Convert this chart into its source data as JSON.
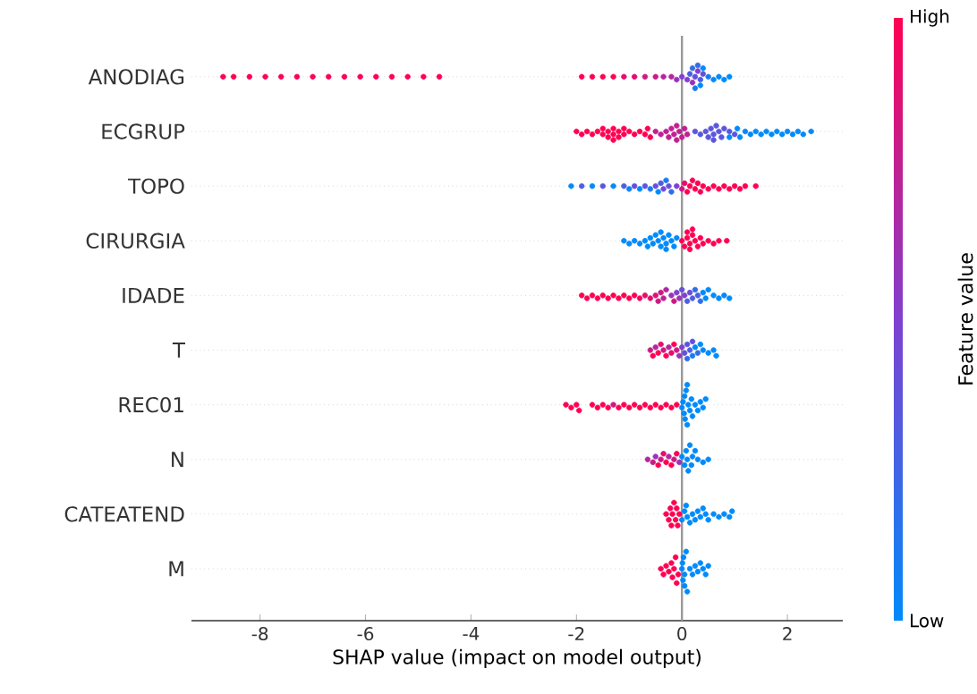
{
  "chart_data": {
    "type": "scatter",
    "orientation": "horizontal",
    "xlabel": "SHAP value (impact on model output)",
    "clabel": "Feature value",
    "categories": [
      "ANODIAG",
      "ECGRUP",
      "TOPO",
      "CIRURGIA",
      "IDADE",
      "T",
      "REC01",
      "N",
      "CATEATEND",
      "M"
    ],
    "xlim": [
      -9.3,
      3.05
    ],
    "xticks": [
      -8,
      -6,
      -4,
      -2,
      0,
      2
    ],
    "clim": [
      0,
      1
    ],
    "cticks": [
      {
        "value": 0,
        "label": "Low"
      },
      {
        "value": 1,
        "label": "High"
      }
    ],
    "grid": "y",
    "marker": "circle",
    "ref_lines": [
      {
        "axis": "x",
        "value": 0,
        "color": "#999999"
      }
    ],
    "series": [
      {
        "x": [
          "ANODIAG",
          "ANODIAG",
          "ANODIAG",
          "ANODIAG",
          "ANODIAG",
          "ANODIAG",
          "ANODIAG",
          "ANODIAG",
          "ANODIAG",
          "ANODIAG",
          "ANODIAG",
          "ANODIAG",
          "ANODIAG",
          "ANODIAG",
          "ANODIAG",
          "ANODIAG",
          "ANODIAG",
          "ANODIAG",
          "ANODIAG",
          "ANODIAG",
          "ANODIAG",
          "ANODIAG",
          "ANODIAG",
          "ANODIAG",
          "ANODIAG",
          "ANODIAG",
          "ANODIAG",
          "ANODIAG",
          "ANODIAG",
          "ANODIAG",
          "ANODIAG",
          "ANODIAG",
          "ANODIAG",
          "ANODIAG",
          "ANODIAG",
          "ANODIAG",
          "ANODIAG",
          "ANODIAG",
          "ANODIAG",
          "ANODIAG",
          "ANODIAG",
          "ANODIAG",
          "ANODIAG",
          "ANODIAG"
        ],
        "values": [
          -8.7,
          -8.5,
          -8.2,
          -7.9,
          -7.6,
          -7.3,
          -7.0,
          -6.7,
          -6.4,
          -6.1,
          -5.8,
          -5.5,
          -5.2,
          -4.9,
          -4.6,
          -1.9,
          -1.7,
          -1.5,
          -1.3,
          -1.1,
          -0.9,
          -0.7,
          -0.5,
          -0.35,
          -0.2,
          -0.1,
          0,
          0.1,
          0.15,
          0.2,
          0.2,
          0.25,
          0.25,
          0.3,
          0.3,
          0.35,
          0.35,
          0.4,
          0.4,
          0.5,
          0.6,
          0.7,
          0.8,
          0.9
        ],
        "cvalues": [
          1,
          1,
          1,
          1,
          1,
          1,
          1,
          1,
          1,
          1,
          1,
          1,
          1,
          1,
          1,
          1,
          1,
          1,
          1,
          0.9,
          0.9,
          0.8,
          0.8,
          0.7,
          0.7,
          0.6,
          0.5,
          0.5,
          0.3,
          0.6,
          0.2,
          0.4,
          0.1,
          0.5,
          0.2,
          0.3,
          0,
          0.4,
          0,
          0.1,
          0,
          0,
          0,
          0
        ],
        "colors": [
          "#ff0052",
          "#ff0052",
          "#ff0052",
          "#ff0052",
          "#ff0052",
          "#ff0052",
          "#ff0052",
          "#ff0052",
          "#ff0052",
          "#ff0052",
          "#ff0052",
          "#ff0052",
          "#ff0052",
          "#ff0052",
          "#ff0052",
          "#ff0052",
          "#ff0052",
          "#ff0052",
          "#ff0052",
          "#e60d6b",
          "#e60d6b",
          "#cc1a84",
          "#cc1a84",
          "#b3269e",
          "#b3269e",
          "#9933b7",
          "#8040d0",
          "#8040d0",
          "#4d5ee1",
          "#9933b7",
          "#336ce9",
          "#664fd8",
          "#1a7bf2",
          "#8040d0",
          "#336ce9",
          "#4d5ee1",
          "#008afa",
          "#664fd8",
          "#008afa",
          "#1a7bf2",
          "#008afa",
          "#008afa",
          "#008afa",
          "#008afa"
        ]
      },
      {
        "x": [
          "ECGRUP",
          "ECGRUP",
          "ECGRUP",
          "ECGRUP",
          "ECGRUP",
          "ECGRUP",
          "ECGRUP",
          "ECGRUP",
          "ECGRUP",
          "ECGRUP",
          "ECGRUP",
          "ECGRUP",
          "ECGRUP",
          "ECGRUP",
          "ECGRUP",
          "ECGRUP",
          "ECGRUP",
          "ECGRUP",
          "ECGRUP",
          "ECGRUP",
          "ECGRUP",
          "ECGRUP",
          "ECGRUP",
          "ECGRUP",
          "ECGRUP",
          "ECGRUP",
          "ECGRUP",
          "ECGRUP",
          "ECGRUP",
          "ECGRUP",
          "ECGRUP",
          "ECGRUP",
          "ECGRUP",
          "ECGRUP",
          "ECGRUP",
          "ECGRUP",
          "ECGRUP",
          "ECGRUP",
          "ECGRUP",
          "ECGRUP",
          "ECGRUP",
          "ECGRUP",
          "ECGRUP",
          "ECGRUP",
          "ECGRUP",
          "ECGRUP",
          "ECGRUP",
          "ECGRUP",
          "ECGRUP",
          "ECGRUP",
          "ECGRUP",
          "ECGRUP",
          "ECGRUP",
          "ECGRUP",
          "ECGRUP",
          "ECGRUP",
          "ECGRUP",
          "ECGRUP",
          "ECGRUP",
          "ECGRUP",
          "ECGRUP",
          "ECGRUP",
          "ECGRUP"
        ],
        "values": [
          -2.0,
          -1.9,
          -1.8,
          -1.7,
          -1.6,
          -1.5,
          -1.5,
          -1.4,
          -1.4,
          -1.3,
          -1.3,
          -1.3,
          -1.2,
          -1.2,
          -1.1,
          -1.1,
          -1.0,
          -0.9,
          -0.8,
          -0.7,
          -0.65,
          -0.6,
          -0.5,
          -0.4,
          -0.3,
          -0.25,
          -0.2,
          -0.15,
          -0.1,
          -0.1,
          -0.05,
          0,
          0.05,
          0.1,
          0.25,
          0.35,
          0.45,
          0.5,
          0.55,
          0.6,
          0.6,
          0.65,
          0.7,
          0.75,
          0.8,
          0.9,
          1.0,
          0.9,
          1.05,
          1.1,
          1.2,
          1.3,
          1.4,
          1.5,
          1.6,
          1.7,
          1.8,
          1.9,
          2.0,
          2.1,
          2.2,
          2.3,
          2.45
        ],
        "cvalues": [
          1,
          1,
          1,
          1,
          1,
          1,
          1,
          1,
          1,
          1,
          1,
          1,
          1,
          1,
          1,
          1,
          1,
          1,
          1,
          1,
          1,
          1,
          0.75,
          0.75,
          0.75,
          0.75,
          0.75,
          0.75,
          0.75,
          0.75,
          0.75,
          0.75,
          0.75,
          0.75,
          0.35,
          0.35,
          0.35,
          0.35,
          0.35,
          0.35,
          0.35,
          0.35,
          0.35,
          0.35,
          0.35,
          0.35,
          0.35,
          0,
          0,
          0,
          0,
          0,
          0,
          0,
          0,
          0,
          0,
          0,
          0,
          0,
          0,
          0,
          0
        ],
        "colors": [
          "#ff0052",
          "#ff0052",
          "#ff0052",
          "#ff0052",
          "#ff0052",
          "#ff0052",
          "#ff0052",
          "#ff0052",
          "#ff0052",
          "#ff0052",
          "#ff0052",
          "#ff0052",
          "#ff0052",
          "#ff0052",
          "#ff0052",
          "#ff0052",
          "#ff0052",
          "#ff0052",
          "#ff0052",
          "#ff0052",
          "#ff0052",
          "#ff0052",
          "#c02091",
          "#c02091",
          "#c02091",
          "#c02091",
          "#c02091",
          "#c02091",
          "#c02091",
          "#c02091",
          "#c02091",
          "#c02091",
          "#c02091",
          "#c02091",
          "#5a56dd",
          "#5a56dd",
          "#5a56dd",
          "#5a56dd",
          "#5a56dd",
          "#5a56dd",
          "#5a56dd",
          "#5a56dd",
          "#5a56dd",
          "#5a56dd",
          "#5a56dd",
          "#5a56dd",
          "#5a56dd",
          "#008afa",
          "#008afa",
          "#008afa",
          "#008afa",
          "#008afa",
          "#008afa",
          "#008afa",
          "#008afa",
          "#008afa",
          "#008afa",
          "#008afa",
          "#008afa",
          "#008afa",
          "#008afa",
          "#008afa",
          "#008afa"
        ]
      },
      {
        "x": [
          "TOPO",
          "TOPO",
          "TOPO",
          "TOPO",
          "TOPO",
          "TOPO",
          "TOPO",
          "TOPO",
          "TOPO",
          "TOPO",
          "TOPO",
          "TOPO",
          "TOPO",
          "TOPO",
          "TOPO",
          "TOPO",
          "TOPO",
          "TOPO",
          "TOPO",
          "TOPO",
          "TOPO",
          "TOPO",
          "TOPO",
          "TOPO",
          "TOPO",
          "TOPO",
          "TOPO",
          "TOPO",
          "TOPO",
          "TOPO",
          "TOPO",
          "TOPO",
          "TOPO",
          "TOPO",
          "TOPO",
          "TOPO",
          "TOPO"
        ],
        "values": [
          -2.1,
          -1.9,
          -1.7,
          -1.5,
          -1.3,
          -1.1,
          -1.0,
          -0.9,
          -0.8,
          -0.7,
          -0.6,
          -0.5,
          -0.45,
          -0.4,
          -0.35,
          -0.3,
          -0.25,
          -0.2,
          -0.1,
          0,
          0.05,
          0.1,
          0.15,
          0.2,
          0.25,
          0.3,
          0.35,
          0.4,
          0.5,
          0.6,
          0.7,
          0.8,
          0.9,
          1.0,
          1.1,
          1.2,
          1.4
        ],
        "cvalues": [
          0,
          0.3,
          0,
          0.35,
          0,
          0.3,
          0.05,
          0.4,
          0,
          0.35,
          0.1,
          0.4,
          0,
          0.3,
          0.45,
          0.1,
          0.4,
          0.2,
          0.5,
          0.8,
          0.9,
          1,
          1,
          1,
          1,
          1,
          1,
          1,
          1,
          1,
          1,
          1,
          1,
          1,
          1,
          1,
          1
        ],
        "colors": [
          "#008afa",
          "#4d5ee1",
          "#008afa",
          "#5a56dd",
          "#008afa",
          "#4d5ee1",
          "#0d83f6",
          "#664fd8",
          "#008afa",
          "#5a56dd",
          "#1a7bf2",
          "#664fd8",
          "#008afa",
          "#4d5ee1",
          "#7347d4",
          "#1a7bf2",
          "#664fd8",
          "#336ce9",
          "#8040d0",
          "#cc1a84",
          "#e60d6b",
          "#ff0052",
          "#ff0052",
          "#ff0052",
          "#ff0052",
          "#ff0052",
          "#ff0052",
          "#ff0052",
          "#ff0052",
          "#ff0052",
          "#ff0052",
          "#ff0052",
          "#ff0052",
          "#ff0052",
          "#ff0052",
          "#ff0052",
          "#ff0052"
        ]
      },
      {
        "x": [
          "CIRURGIA",
          "CIRURGIA",
          "CIRURGIA",
          "CIRURGIA",
          "CIRURGIA",
          "CIRURGIA",
          "CIRURGIA",
          "CIRURGIA",
          "CIRURGIA",
          "CIRURGIA",
          "CIRURGIA",
          "CIRURGIA",
          "CIRURGIA",
          "CIRURGIA",
          "CIRURGIA",
          "CIRURGIA",
          "CIRURGIA",
          "CIRURGIA",
          "CIRURGIA",
          "CIRURGIA",
          "CIRURGIA",
          "CIRURGIA",
          "CIRURGIA",
          "CIRURGIA",
          "CIRURGIA",
          "CIRURGIA",
          "CIRURGIA",
          "CIRURGIA",
          "CIRURGIA",
          "CIRURGIA",
          "CIRURGIA",
          "CIRURGIA",
          "CIRURGIA",
          "CIRURGIA",
          "CIRURGIA"
        ],
        "values": [
          -1.1,
          -1.0,
          -0.9,
          -0.8,
          -0.7,
          -0.65,
          -0.6,
          -0.55,
          -0.5,
          -0.45,
          -0.4,
          -0.4,
          -0.35,
          -0.3,
          -0.3,
          -0.25,
          -0.2,
          -0.15,
          -0.1,
          0.0,
          0.05,
          0.1,
          0.1,
          0.15,
          0.15,
          0.2,
          0.2,
          0.25,
          0.3,
          0.35,
          0.4,
          0.5,
          0.6,
          0.7,
          0.85
        ],
        "cvalues": [
          0,
          0,
          0,
          0,
          0,
          0,
          0,
          0,
          0,
          0,
          0,
          0,
          0,
          0,
          0,
          0,
          0,
          0,
          0,
          1,
          1,
          1,
          1,
          1,
          1,
          1,
          1,
          1,
          1,
          1,
          1,
          1,
          1,
          1,
          1
        ],
        "colors": [
          "#008afa",
          "#008afa",
          "#008afa",
          "#008afa",
          "#008afa",
          "#008afa",
          "#008afa",
          "#008afa",
          "#008afa",
          "#008afa",
          "#008afa",
          "#008afa",
          "#008afa",
          "#008afa",
          "#008afa",
          "#008afa",
          "#008afa",
          "#008afa",
          "#008afa",
          "#ff0052",
          "#ff0052",
          "#ff0052",
          "#ff0052",
          "#ff0052",
          "#ff0052",
          "#ff0052",
          "#ff0052",
          "#ff0052",
          "#ff0052",
          "#ff0052",
          "#ff0052",
          "#ff0052",
          "#ff0052",
          "#ff0052",
          "#ff0052"
        ]
      },
      {
        "x": [
          "IDADE",
          "IDADE",
          "IDADE",
          "IDADE",
          "IDADE",
          "IDADE",
          "IDADE",
          "IDADE",
          "IDADE",
          "IDADE",
          "IDADE",
          "IDADE",
          "IDADE",
          "IDADE",
          "IDADE",
          "IDADE",
          "IDADE",
          "IDADE",
          "IDADE",
          "IDADE",
          "IDADE",
          "IDADE",
          "IDADE",
          "IDADE",
          "IDADE",
          "IDADE",
          "IDADE",
          "IDADE",
          "IDADE",
          "IDADE",
          "IDADE",
          "IDADE",
          "IDADE",
          "IDADE",
          "IDADE",
          "IDADE",
          "IDADE",
          "IDADE"
        ],
        "values": [
          -1.9,
          -1.8,
          -1.7,
          -1.6,
          -1.5,
          -1.4,
          -1.3,
          -1.2,
          -1.1,
          -1.0,
          -0.9,
          -0.8,
          -0.7,
          -0.6,
          -0.5,
          -0.45,
          -0.4,
          -0.35,
          -0.3,
          -0.2,
          -0.15,
          -0.1,
          -0.05,
          0,
          0.05,
          0.1,
          0.15,
          0.2,
          0.25,
          0.3,
          0.35,
          0.4,
          0.45,
          0.5,
          0.6,
          0.7,
          0.8,
          0.9
        ],
        "cvalues": [
          1,
          1,
          1,
          1,
          1,
          1,
          1,
          1,
          1,
          1,
          1,
          0.95,
          0.9,
          0.9,
          0.85,
          0.8,
          0.8,
          0.75,
          0.7,
          0.6,
          0.8,
          0.5,
          0.6,
          0.4,
          0.5,
          0.3,
          0.4,
          0.3,
          0.2,
          0.3,
          0.2,
          0,
          0,
          0,
          0,
          0,
          0,
          0
        ],
        "colors": [
          "#ff0052",
          "#ff0052",
          "#ff0052",
          "#ff0052",
          "#ff0052",
          "#ff0052",
          "#ff0052",
          "#ff0052",
          "#ff0052",
          "#ff0052",
          "#ff0052",
          "#f2065f",
          "#e60d6b",
          "#e60d6b",
          "#d91378",
          "#cc1a84",
          "#cc1a84",
          "#c02091",
          "#b3269e",
          "#9933b7",
          "#cc1a84",
          "#8040d0",
          "#9933b7",
          "#664fd8",
          "#8040d0",
          "#4d5ee1",
          "#664fd8",
          "#4d5ee1",
          "#336ce9",
          "#4d5ee1",
          "#336ce9",
          "#008afa",
          "#008afa",
          "#008afa",
          "#008afa",
          "#008afa",
          "#008afa",
          "#008afa"
        ]
      },
      {
        "x": [
          "T",
          "T",
          "T",
          "T",
          "T",
          "T",
          "T",
          "T",
          "T",
          "T",
          "T",
          "T",
          "T",
          "T",
          "T",
          "T",
          "T",
          "T",
          "T",
          "T",
          "T",
          "T",
          "T",
          "T",
          "T",
          "T"
        ],
        "values": [
          -0.6,
          -0.55,
          -0.5,
          -0.45,
          -0.4,
          -0.35,
          -0.3,
          -0.25,
          -0.2,
          -0.15,
          -0.1,
          -0.05,
          0,
          0.05,
          0.1,
          0.1,
          0.15,
          0.2,
          0.2,
          0.25,
          0.3,
          0.35,
          0.4,
          0.5,
          0.6,
          0.65
        ],
        "cvalues": [
          0.8,
          1,
          0.7,
          1,
          0.9,
          0.8,
          1,
          0.7,
          0.9,
          1,
          0.8,
          0.6,
          0.5,
          0.4,
          0.35,
          0.2,
          0.3,
          0.1,
          0.4,
          0,
          0.2,
          0,
          0,
          0,
          0,
          0
        ],
        "colors": [
          "#cc1a84",
          "#ff0052",
          "#b3269e",
          "#ff0052",
          "#e60d6b",
          "#cc1a84",
          "#ff0052",
          "#b3269e",
          "#e60d6b",
          "#ff0052",
          "#cc1a84",
          "#9933b7",
          "#8040d0",
          "#664fd8",
          "#5a56dd",
          "#336ce9",
          "#4d5ee1",
          "#1a7bf2",
          "#664fd8",
          "#008afa",
          "#336ce9",
          "#008afa",
          "#008afa",
          "#008afa",
          "#008afa",
          "#008afa"
        ]
      },
      {
        "x": [
          "REC01",
          "REC01",
          "REC01",
          "REC01",
          "REC01",
          "REC01",
          "REC01",
          "REC01",
          "REC01",
          "REC01",
          "REC01",
          "REC01",
          "REC01",
          "REC01",
          "REC01",
          "REC01",
          "REC01",
          "REC01",
          "REC01",
          "REC01",
          "REC01",
          "REC01",
          "REC01",
          "REC01",
          "REC01",
          "REC01",
          "REC01",
          "REC01",
          "REC01",
          "REC01",
          "REC01",
          "REC01",
          "REC01",
          "REC01",
          "REC01",
          "REC01",
          "REC01",
          "REC01"
        ],
        "values": [
          -2.2,
          -2.1,
          -2.0,
          -1.95,
          -1.7,
          -1.6,
          -1.5,
          -1.4,
          -1.3,
          -1.2,
          -1.1,
          -1.0,
          -0.9,
          -0.8,
          -0.7,
          -0.6,
          -0.5,
          -0.4,
          -0.3,
          -0.2,
          -0.1,
          0,
          0.02,
          0.04,
          0.05,
          0.06,
          0.08,
          0.1,
          0.1,
          0.12,
          0.15,
          0.18,
          0.2,
          0.25,
          0.3,
          0.35,
          0.4,
          0.45
        ],
        "cvalues": [
          1,
          1,
          1,
          1,
          1,
          1,
          1,
          1,
          0.8,
          1,
          1,
          1,
          1,
          1,
          1,
          1,
          1,
          1,
          1,
          1,
          1,
          0,
          0,
          0,
          0,
          0,
          0,
          0,
          0,
          0,
          0,
          0,
          0,
          0,
          0,
          0,
          0,
          0
        ],
        "colors": [
          "#ff0052",
          "#ff0052",
          "#ff0052",
          "#ff0052",
          "#ff0052",
          "#ff0052",
          "#ff0052",
          "#ff0052",
          "#cc1a84",
          "#ff0052",
          "#ff0052",
          "#ff0052",
          "#ff0052",
          "#ff0052",
          "#ff0052",
          "#ff0052",
          "#ff0052",
          "#ff0052",
          "#ff0052",
          "#ff0052",
          "#ff0052",
          "#008afa",
          "#008afa",
          "#008afa",
          "#008afa",
          "#008afa",
          "#008afa",
          "#008afa",
          "#008afa",
          "#008afa",
          "#008afa",
          "#008afa",
          "#008afa",
          "#008afa",
          "#008afa",
          "#008afa",
          "#008afa",
          "#008afa"
        ]
      },
      {
        "x": [
          "N",
          "N",
          "N",
          "N",
          "N",
          "N",
          "N",
          "N",
          "N",
          "N",
          "N",
          "N",
          "N",
          "N",
          "N",
          "N",
          "N",
          "N",
          "N",
          "N",
          "N",
          "N",
          "N",
          "N"
        ],
        "values": [
          -0.65,
          -0.55,
          -0.5,
          -0.45,
          -0.4,
          -0.35,
          -0.3,
          -0.25,
          -0.2,
          -0.15,
          -0.1,
          -0.05,
          0.0,
          0.05,
          0.08,
          0.1,
          0.12,
          0.15,
          0.18,
          0.2,
          0.25,
          0.3,
          0.4,
          0.5
        ],
        "cvalues": [
          0.7,
          0.8,
          0.6,
          1,
          0.8,
          0.9,
          1,
          0.7,
          1,
          0.8,
          1,
          0.6,
          0,
          0,
          0,
          0,
          0,
          0,
          0,
          0,
          0,
          0,
          0,
          0
        ],
        "colors": [
          "#b3269e",
          "#cc1a84",
          "#9933b7",
          "#ff0052",
          "#cc1a84",
          "#e60d6b",
          "#ff0052",
          "#b3269e",
          "#ff0052",
          "#cc1a84",
          "#ff0052",
          "#9933b7",
          "#008afa",
          "#008afa",
          "#008afa",
          "#008afa",
          "#008afa",
          "#008afa",
          "#008afa",
          "#008afa",
          "#008afa",
          "#008afa",
          "#008afa",
          "#008afa"
        ]
      },
      {
        "x": [
          "CATEATEND",
          "CATEATEND",
          "CATEATEND",
          "CATEATEND",
          "CATEATEND",
          "CATEATEND",
          "CATEATEND",
          "CATEATEND",
          "CATEATEND",
          "CATEATEND",
          "CATEATEND",
          "CATEATEND",
          "CATEATEND",
          "CATEATEND",
          "CATEATEND",
          "CATEATEND",
          "CATEATEND",
          "CATEATEND",
          "CATEATEND",
          "CATEATEND",
          "CATEATEND",
          "CATEATEND",
          "CATEATEND",
          "CATEATEND",
          "CATEATEND",
          "CATEATEND",
          "CATEATEND"
        ],
        "values": [
          -0.3,
          -0.25,
          -0.22,
          -0.2,
          -0.18,
          -0.15,
          -0.12,
          -0.1,
          -0.08,
          -0.05,
          0.0,
          0.05,
          0.08,
          0.1,
          0.15,
          0.2,
          0.25,
          0.3,
          0.35,
          0.4,
          0.45,
          0.5,
          0.6,
          0.7,
          0.8,
          0.9,
          0.95
        ],
        "cvalues": [
          1,
          1,
          1,
          1,
          1,
          1,
          1,
          1,
          1,
          1,
          0,
          0,
          0,
          0,
          0,
          0,
          0,
          0,
          0,
          0,
          0,
          0,
          0,
          0,
          0,
          0,
          0
        ],
        "colors": [
          "#ff0052",
          "#ff0052",
          "#ff0052",
          "#ff0052",
          "#ff0052",
          "#ff0052",
          "#ff0052",
          "#ff0052",
          "#ff0052",
          "#ff0052",
          "#008afa",
          "#008afa",
          "#008afa",
          "#008afa",
          "#008afa",
          "#008afa",
          "#008afa",
          "#008afa",
          "#008afa",
          "#008afa",
          "#008afa",
          "#008afa",
          "#008afa",
          "#008afa",
          "#008afa",
          "#008afa",
          "#008afa"
        ]
      },
      {
        "x": [
          "M",
          "M",
          "M",
          "M",
          "M",
          "M",
          "M",
          "M",
          "M",
          "M",
          "M",
          "M",
          "M",
          "M",
          "M",
          "M",
          "M",
          "M",
          "M",
          "M",
          "M",
          "M",
          "M",
          "M",
          "M",
          "M"
        ],
        "values": [
          -0.4,
          -0.35,
          -0.3,
          -0.25,
          -0.2,
          -0.18,
          -0.15,
          -0.12,
          -0.1,
          -0.07,
          0.0,
          0.01,
          0.02,
          0.03,
          0.05,
          0.05,
          0.08,
          0.1,
          0.15,
          0.2,
          0.25,
          0.3,
          0.35,
          0.4,
          0.45,
          0.5
        ],
        "cvalues": [
          1,
          1,
          1,
          1,
          1,
          1,
          1,
          1,
          1,
          1,
          0,
          0,
          0,
          0,
          0,
          0,
          0,
          0,
          0,
          0,
          0,
          0,
          0,
          0,
          0,
          0
        ],
        "colors": [
          "#ff0052",
          "#ff0052",
          "#ff0052",
          "#ff0052",
          "#ff0052",
          "#ff0052",
          "#ff0052",
          "#ff0052",
          "#ff0052",
          "#ff0052",
          "#008afa",
          "#008afa",
          "#008afa",
          "#008afa",
          "#008afa",
          "#008afa",
          "#008afa",
          "#008afa",
          "#008afa",
          "#008afa",
          "#008afa",
          "#008afa",
          "#008afa",
          "#008afa",
          "#008afa",
          "#008afa"
        ]
      }
    ]
  }
}
